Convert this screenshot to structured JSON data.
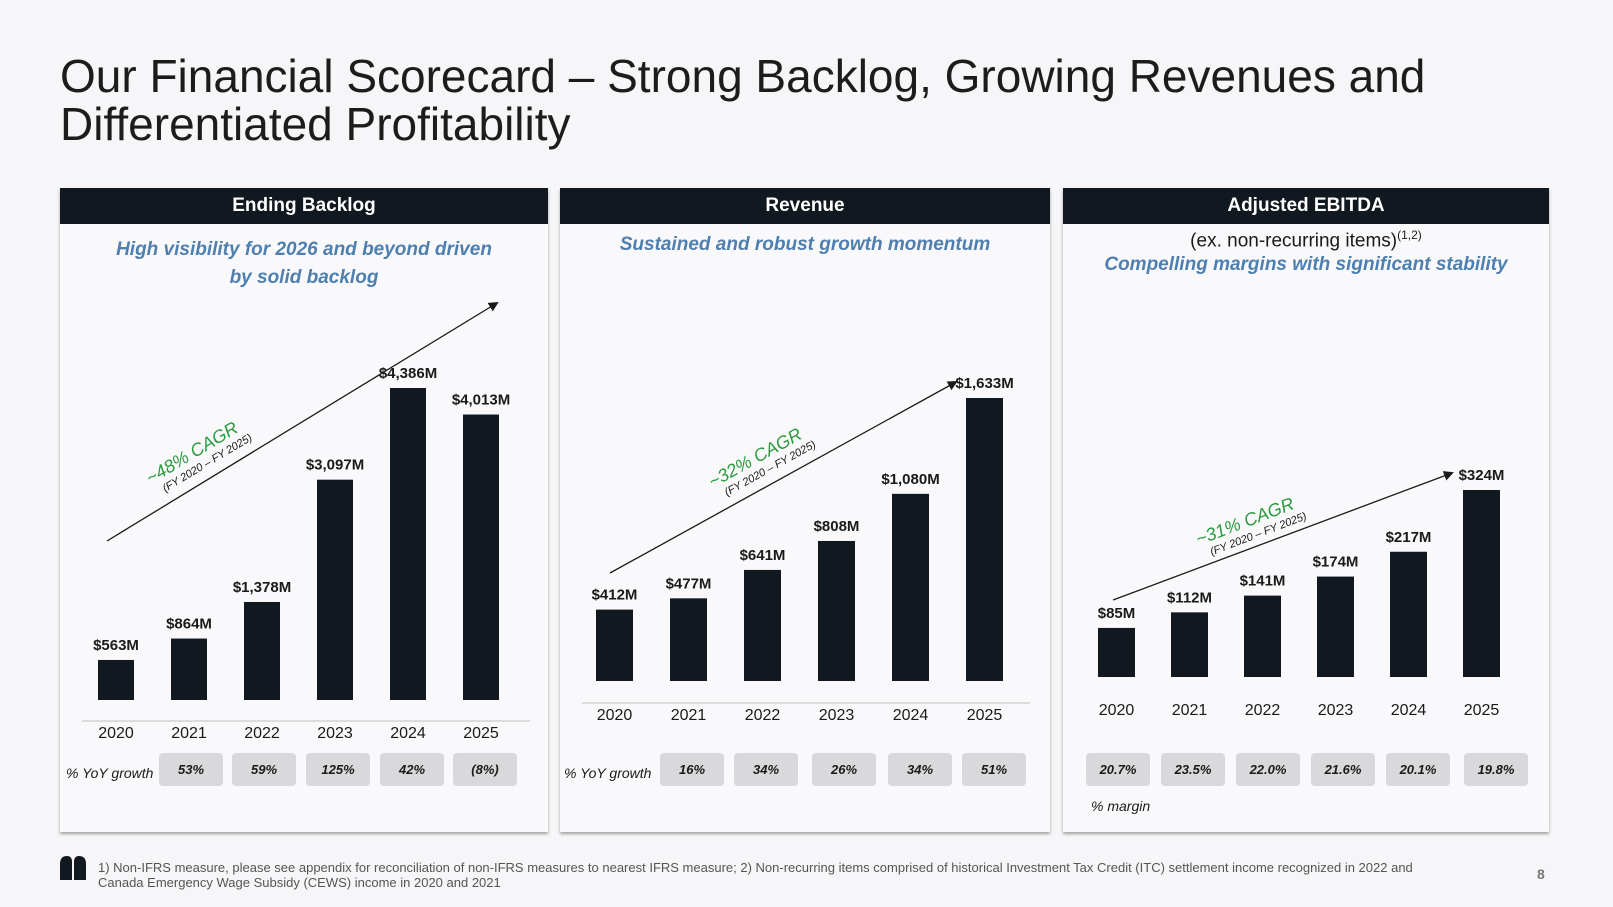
{
  "title": "Our Financial Scorecard – Strong Backlog, Growing Revenues and Differentiated Profitability",
  "footnote": "1) Non-IFRS measure, please see appendix for reconciliation of non-IFRS measures to nearest IFRS measure; 2)  Non-recurring items comprised of historical Investment Tax Credit (ITC) settlement income recognized in 2022 and Canada Emergency Wage Subsidy (CEWS) income in 2020 and 2021",
  "page_number": "8",
  "colors": {
    "bar": "#111820",
    "header": "#111820",
    "subtitle": "#4e7fae",
    "cagr": "#2a9b3e",
    "pill": "#d9d9db"
  },
  "panels": [
    {
      "header": "Ending Backlog",
      "subtitle_line1": "High visibility for 2026 and beyond driven",
      "subtitle_line2": "by solid backlog",
      "cagr": "~48% CAGR",
      "cagr_period": "(FY 2020 – FY 2025)",
      "row_label": "% YoY growth",
      "pills": [
        "53%",
        "59%",
        "125%",
        "42%",
        "(8%)"
      ]
    },
    {
      "header": "Revenue",
      "subtitle_line1": "Sustained and robust growth momentum",
      "cagr": "~32% CAGR",
      "cagr_period": "(FY 2020 – FY 2025)",
      "row_label": "% YoY growth",
      "pills": [
        "16%",
        "34%",
        "26%",
        "34%",
        "51%"
      ]
    },
    {
      "header": "Adjusted EBITDA",
      "subnote": "(ex. non-recurring items)",
      "subnote_sup": "(1,2)",
      "subtitle_line1": "Compelling margins with significant stability",
      "cagr": "~31% CAGR",
      "cagr_period": "(FY 2020 – FY 2025)",
      "row_label": "% margin",
      "pills": [
        "20.7%",
        "23.5%",
        "22.0%",
        "21.6%",
        "20.1%",
        "19.8%"
      ]
    }
  ],
  "chart_data": [
    {
      "type": "bar",
      "title": "Ending Backlog",
      "categories": [
        "2020",
        "2021",
        "2022",
        "2023",
        "2024",
        "2025"
      ],
      "values": [
        563,
        864,
        1378,
        3097,
        4386,
        4013
      ],
      "labels": [
        "$563M",
        "$864M",
        "$1,378M",
        "$3,097M",
        "$4,386M",
        "$4,013M"
      ],
      "unit": "$M",
      "ylim": [
        0,
        4386
      ]
    },
    {
      "type": "bar",
      "title": "Revenue",
      "categories": [
        "2020",
        "2021",
        "2022",
        "2023",
        "2024",
        "2025"
      ],
      "values": [
        412,
        477,
        641,
        808,
        1080,
        1633
      ],
      "labels": [
        "$412M",
        "$477M",
        "$641M",
        "$808M",
        "$1,080M",
        "$1,633M"
      ],
      "unit": "$M",
      "ylim": [
        0,
        1633
      ]
    },
    {
      "type": "bar",
      "title": "Adjusted EBITDA",
      "categories": [
        "2020",
        "2021",
        "2022",
        "2023",
        "2024",
        "2025"
      ],
      "values": [
        85,
        112,
        141,
        174,
        217,
        324
      ],
      "labels": [
        "$85M",
        "$112M",
        "$141M",
        "$174M",
        "$217M",
        "$324M"
      ],
      "unit": "$M",
      "ylim": [
        0,
        324
      ]
    }
  ]
}
